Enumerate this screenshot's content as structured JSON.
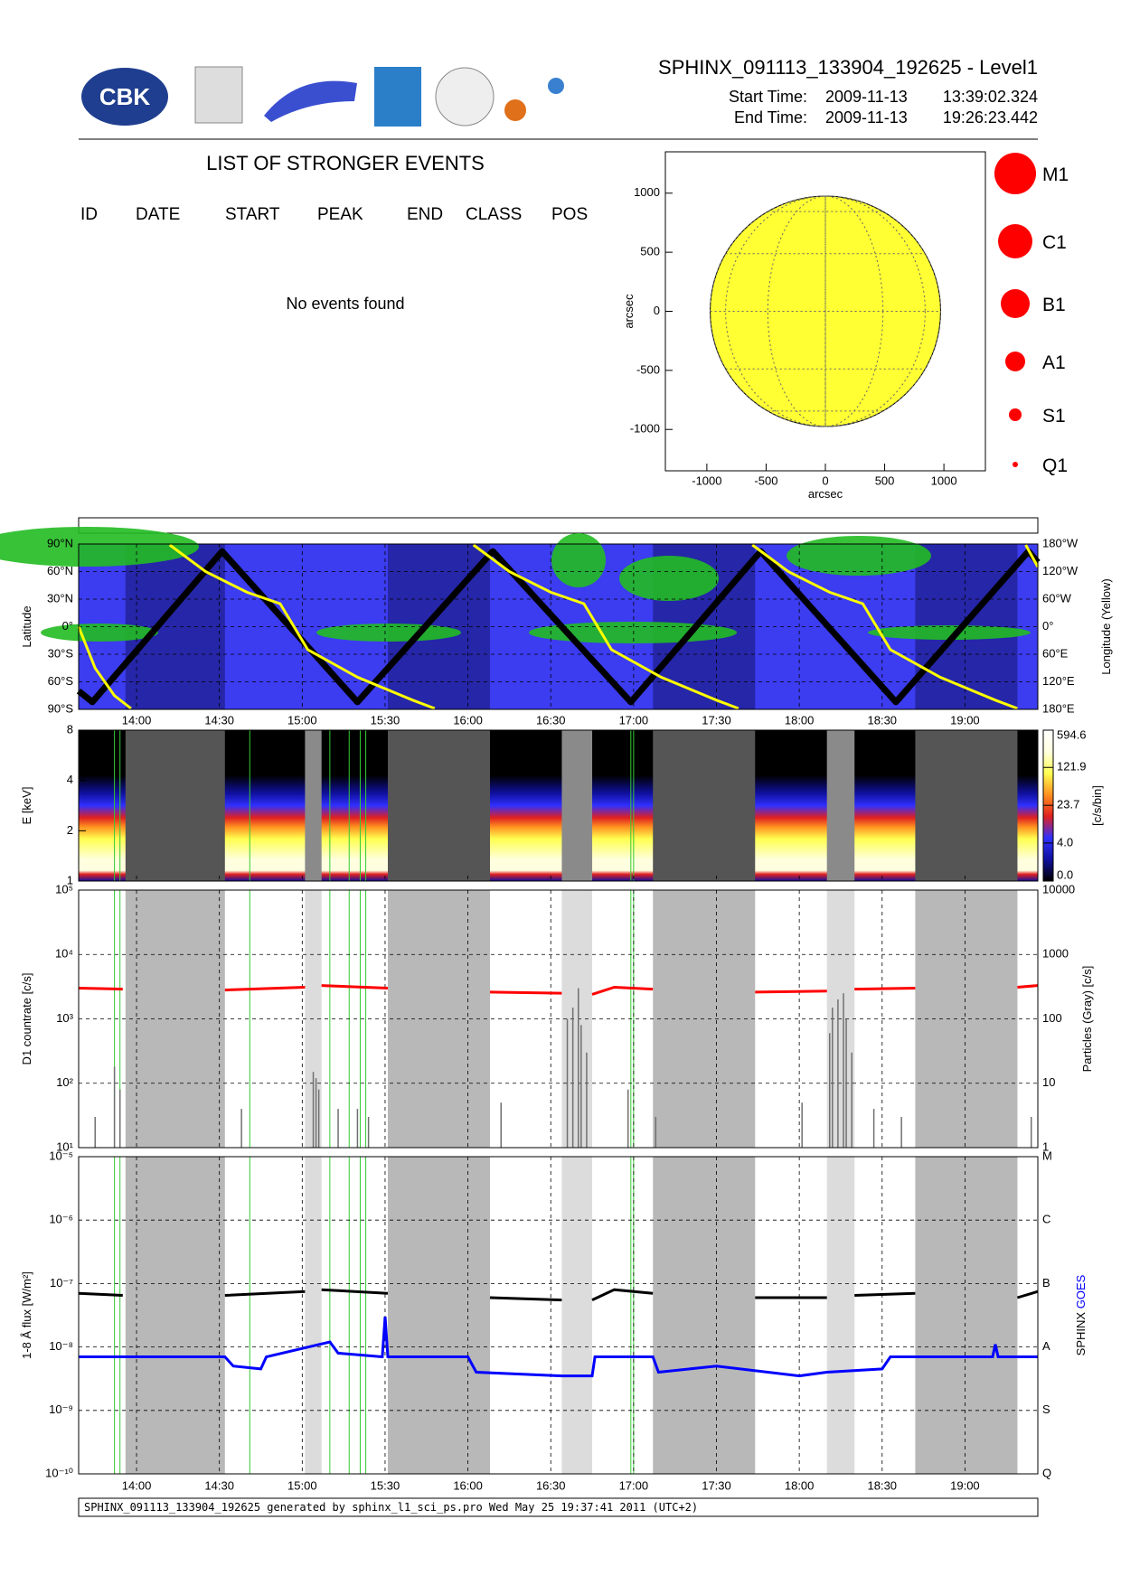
{
  "header": {
    "logo_text": "CBK",
    "title": "SPHINX_091113_133904_192625 - Level1",
    "start_label": "Start Time:",
    "start_date": "2009-11-13",
    "start_time": "13:39:02.324",
    "end_label": "End Time:",
    "end_date": "2009-11-13",
    "end_time": "19:26:23.442"
  },
  "events": {
    "title": "LIST OF STRONGER EVENTS",
    "columns": [
      "ID",
      "DATE",
      "START",
      "PEAK",
      "END",
      "CLASS",
      "POS"
    ],
    "message": "No events found"
  },
  "legend": {
    "color": "#ff0000",
    "classes": [
      "M1",
      "C1",
      "B1",
      "A1",
      "S1",
      "Q1"
    ]
  },
  "time_axis": {
    "xlim": [
      "13:39:02",
      "19:26:23"
    ],
    "xticks": [
      "14:00",
      "14:30",
      "15:00",
      "15:30",
      "16:00",
      "16:30",
      "17:00",
      "17:30",
      "18:00",
      "18:30",
      "19:00"
    ],
    "dark_intervals": [
      [
        "13:56",
        "14:32"
      ],
      [
        "15:31",
        "16:08"
      ],
      [
        "17:07",
        "17:44"
      ],
      [
        "18:42",
        "19:19"
      ]
    ],
    "light_intervals": [
      [
        "15:01",
        "15:07"
      ],
      [
        "16:34",
        "16:45"
      ],
      [
        "18:10",
        "18:20"
      ]
    ],
    "event_lines": [
      "13:52",
      "13:54",
      "14:41",
      "15:10",
      "15:17",
      "15:21",
      "15:23",
      "16:59",
      "17:00"
    ]
  },
  "chart_data": [
    {
      "type": "disk",
      "xlabel": "arcsec",
      "ylabel": "arcsec",
      "xlim": [
        -1350,
        1350
      ],
      "ylim": [
        -1350,
        1350
      ],
      "xticks": [
        -1000,
        -500,
        0,
        500,
        1000
      ],
      "yticks": [
        -1000,
        -500,
        0,
        500,
        1000
      ],
      "color": "#ffff33"
    },
    {
      "type": "orbit",
      "ylabel": "Latitude",
      "y2label": "Longitude (Yellow)",
      "ylim": [
        -90,
        90
      ],
      "yticks": [
        {
          "value": -90,
          "label": "90°S"
        },
        {
          "value": -60,
          "label": "60°S"
        },
        {
          "value": -30,
          "label": "30°S"
        },
        {
          "value": 0,
          "label": "0°"
        },
        {
          "value": 30,
          "label": "30°N"
        },
        {
          "value": 60,
          "label": "60°N"
        },
        {
          "value": 90,
          "label": "90°N"
        }
      ],
      "y2lim": [
        180,
        -180
      ],
      "y2ticks": [
        {
          "value": -180,
          "label": "180°W"
        },
        {
          "value": -120,
          "label": "120°W"
        },
        {
          "value": -60,
          "label": "60°W"
        },
        {
          "value": 0,
          "label": "0°"
        },
        {
          "value": 60,
          "label": "60°E"
        },
        {
          "value": 120,
          "label": "120°E"
        },
        {
          "value": 180,
          "label": "180°E"
        }
      ],
      "background": "#3c3cf0",
      "shade": "#2626a8",
      "series": [
        {
          "color": "#000000",
          "x": [
            "13:39:02",
            "13:44",
            "14:31",
            "15:20",
            "16:09",
            "16:59",
            "17:46",
            "18:35",
            "19:23",
            "19:26:23"
          ],
          "values": [
            -70,
            -82,
            82,
            -82,
            82,
            -82,
            82,
            -82,
            82,
            70
          ]
        },
        {
          "color": "#ffff00",
          "axis": "y2",
          "x": [
            "13:39:02",
            "13:45",
            "13:52",
            "13:58",
            null,
            "14:12",
            "14:25",
            "14:40",
            "14:52",
            "14:57",
            "15:02",
            "15:20",
            "15:40",
            "15:48",
            null,
            "16:02",
            "16:15",
            "16:30",
            "16:42",
            "16:47",
            "16:52",
            "17:10",
            "17:30",
            "17:38",
            null,
            "17:43",
            "17:56",
            "18:11",
            "18:23",
            "18:28",
            "18:33",
            "18:51",
            "19:11",
            "19:19",
            null,
            "19:22",
            "19:26:23"
          ],
          "values": [
            0,
            90,
            150,
            178,
            null,
            -178,
            -120,
            -75,
            -50,
            0,
            50,
            110,
            160,
            178,
            null,
            -178,
            -120,
            -75,
            -50,
            0,
            50,
            110,
            160,
            178,
            null,
            -178,
            -120,
            -75,
            -50,
            0,
            50,
            110,
            160,
            178,
            null,
            -178,
            -130
          ]
        }
      ]
    },
    {
      "type": "spectrogram",
      "ylabel": "E [keV]",
      "log": true,
      "ylim": [
        1,
        8
      ],
      "yticks": [
        1,
        2,
        4,
        8
      ],
      "dark": "#555555",
      "light": "#8a8a8a",
      "colorbar": {
        "label": "[c/s/bin]",
        "scale": "log1p",
        "lim": [
          0,
          594.6
        ],
        "ticks": [
          {
            "value": 0,
            "label": "0.0"
          },
          {
            "value": 4,
            "label": "4.0"
          },
          23.7,
          121.9,
          594.6
        ],
        "colors": [
          "#1010a0",
          "#3030ff",
          "#e02020",
          "#ff9020",
          "#ffff50",
          "#ffffe0"
        ]
      }
    },
    {
      "type": "timeseries",
      "log": true,
      "ylabel": "D1 countrate [c/s]",
      "y2label": "Particles (Gray) [c/s]",
      "ylim": [
        10,
        100000
      ],
      "yticks": [
        {
          "value": 10,
          "label": "10¹"
        },
        {
          "value": 100,
          "label": "10²"
        },
        {
          "value": 1000,
          "label": "10³"
        },
        {
          "value": 10000,
          "label": "10⁴"
        },
        {
          "value": 100000,
          "label": "10⁵"
        }
      ],
      "y2lim": [
        1,
        10000
      ],
      "y2ticks": [
        1,
        10,
        100,
        1000,
        10000
      ],
      "dark": "#b8b8b8",
      "light": "#dcdcdc",
      "series": [
        {
          "color": "#ff0000",
          "x": [
            "13:39:02",
            "13:55",
            null,
            "14:32",
            "15:01",
            null,
            "15:07",
            "15:31",
            null,
            "16:08",
            "16:34",
            null,
            "16:45",
            "16:53",
            "17:07",
            null,
            "17:44",
            "18:10",
            null,
            "18:20",
            "18:42",
            null,
            "19:19",
            "19:26:23"
          ],
          "values": [
            3000,
            2900,
            null,
            2800,
            3100,
            null,
            3300,
            3000,
            null,
            2600,
            2500,
            null,
            2400,
            3100,
            2900,
            null,
            2600,
            2700,
            null,
            2900,
            3000,
            null,
            3100,
            3300
          ]
        },
        {
          "color": "#707070",
          "axis": "y2",
          "style": "spikes",
          "x": [
            "13:45",
            "13:52",
            "13:54",
            "14:38",
            "15:04",
            "15:05",
            "15:06",
            "15:13",
            "15:20",
            "15:24",
            "16:12",
            "16:36",
            "16:38",
            "16:40",
            "16:41",
            "16:43",
            "16:58",
            "17:08",
            "18:01",
            "18:11",
            "18:12",
            "18:14",
            "18:16",
            "18:17",
            "18:19",
            "18:27",
            "18:37",
            "19:24"
          ],
          "values": [
            3,
            18,
            8,
            4,
            15,
            12,
            8,
            4,
            4,
            3,
            5,
            100,
            150,
            300,
            80,
            30,
            8,
            3,
            5,
            60,
            150,
            200,
            250,
            100,
            30,
            4,
            3,
            3
          ]
        }
      ]
    },
    {
      "type": "timeseries",
      "log": true,
      "ylabel": "1-8 Å flux [W/m²]",
      "ylim": [
        1e-10,
        1e-05
      ],
      "yticks": [
        {
          "value": 1e-10,
          "label": "10⁻¹⁰"
        },
        {
          "value": 1e-09,
          "label": "10⁻⁹"
        },
        {
          "value": 1e-08,
          "label": "10⁻⁸"
        },
        {
          "value": 1e-07,
          "label": "10⁻⁷"
        },
        {
          "value": 1e-06,
          "label": "10⁻⁶"
        },
        {
          "value": 1e-05,
          "label": "10⁻⁵"
        }
      ],
      "y2ticks": [
        {
          "value": 1e-10,
          "label": "Q"
        },
        {
          "value": 1e-09,
          "label": "S"
        },
        {
          "value": 1e-08,
          "label": "A"
        },
        {
          "value": 1e-07,
          "label": "B"
        },
        {
          "value": 1e-06,
          "label": "C"
        },
        {
          "value": 1e-05,
          "label": "M"
        }
      ],
      "dark": "#b8b8b8",
      "light": "#dcdcdc",
      "series": [
        {
          "name": "SPHINX",
          "color": "#000000",
          "x": [
            "13:39:02",
            "13:55",
            null,
            "14:32",
            "15:01",
            null,
            "15:07",
            "15:31",
            null,
            "16:08",
            "16:34",
            null,
            "16:45",
            "16:53",
            "17:07",
            null,
            "17:44",
            "18:10",
            null,
            "18:20",
            "18:42",
            null,
            "19:19",
            "19:26:23"
          ],
          "values": [
            7e-08,
            6.5e-08,
            null,
            6.5e-08,
            7.5e-08,
            null,
            8e-08,
            7e-08,
            null,
            6e-08,
            5.5e-08,
            null,
            5.5e-08,
            8e-08,
            7e-08,
            null,
            6e-08,
            6e-08,
            null,
            6.5e-08,
            7e-08,
            null,
            6e-08,
            7.5e-08
          ]
        },
        {
          "name": "GOES",
          "color": "#0000ff",
          "x": [
            "13:39:02",
            "14:32",
            "14:35",
            "14:45",
            "14:47",
            "15:10",
            "15:13",
            "15:29",
            "15:30",
            "15:31",
            "16:00",
            "16:03",
            "16:34",
            "16:45",
            "16:46",
            "17:07",
            "17:09",
            "17:30",
            "18:00",
            "18:10",
            "18:30",
            "18:33",
            "19:10",
            "19:11",
            "19:12",
            "19:26:23"
          ],
          "values": [
            7e-09,
            7e-09,
            5e-09,
            4.5e-09,
            7e-09,
            1.2e-08,
            8e-09,
            7e-09,
            3e-08,
            7e-09,
            7e-09,
            4e-09,
            3.5e-09,
            3.5e-09,
            7e-09,
            7e-09,
            4e-09,
            5e-09,
            3.5e-09,
            4e-09,
            4.5e-09,
            7e-09,
            7e-09,
            1.1e-08,
            7e-09,
            7e-09
          ]
        }
      ]
    }
  ],
  "footer": "SPHINX_091113_133904_192625 generated by sphinx_l1_sci_ps.pro Wed May 25 19:37:41 2011 (UTC+2)"
}
